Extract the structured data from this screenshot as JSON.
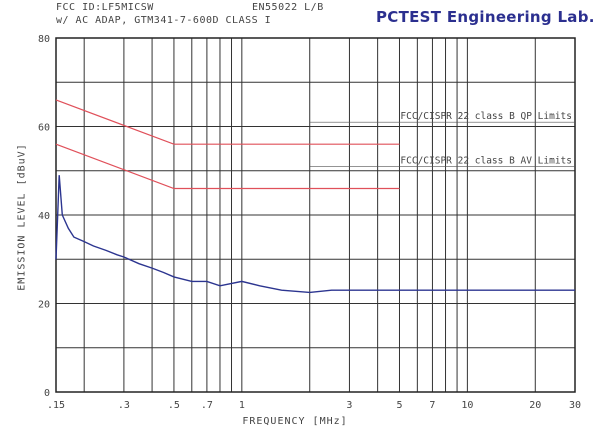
{
  "header": {
    "line1": "FCC ID:LF5MICSW",
    "line2": "w/ AC ADAP, GTM341-7-600D CLASS I",
    "standard": "EN55022 L/B",
    "lab": "PCTEST Engineering Lab."
  },
  "chart_data": {
    "type": "line",
    "xscale": "log",
    "xlabel": "FREQUENCY [MHz]",
    "ylabel": "EMISSION LEVEL [dBuV]",
    "xlim": [
      0.15,
      30
    ],
    "ylim": [
      0,
      80
    ],
    "grid": true,
    "xticks": [
      0.15,
      0.3,
      0.5,
      0.7,
      1,
      3,
      5,
      7,
      10,
      20,
      30
    ],
    "xtick_labels": [
      ".15",
      ".3",
      ".5",
      ".7",
      "1",
      "3",
      "5",
      "7",
      "10",
      "20",
      "30"
    ],
    "yticks": [
      0,
      20,
      40,
      60,
      80
    ],
    "ytick_labels": [
      "0",
      "20",
      "40",
      "60",
      "80"
    ],
    "series": [
      {
        "name": "FCC/CISPR 22 class B QP Limits",
        "color": "#e0505a",
        "x": [
          0.15,
          0.5,
          5
        ],
        "y": [
          66,
          56,
          56
        ]
      },
      {
        "name": "FCC/CISPR 22 class B AV Limits",
        "color": "#e0505a",
        "x": [
          0.15,
          0.5,
          5
        ],
        "y": [
          56,
          46,
          46
        ]
      },
      {
        "name": "",
        "color": "#2c3590",
        "x": [
          0.15,
          0.155,
          0.16,
          0.17,
          0.18,
          0.2,
          0.22,
          0.25,
          0.28,
          0.3,
          0.35,
          0.4,
          0.45,
          0.5,
          0.6,
          0.7,
          0.8,
          1.0,
          1.2,
          1.5,
          2.0,
          2.5,
          3.0,
          4.0,
          5.0,
          7.0,
          10,
          15,
          20,
          30
        ],
        "y": [
          30,
          49,
          40,
          37,
          35,
          34,
          33,
          32,
          31,
          30.5,
          29,
          28,
          27,
          26,
          25,
          25,
          24,
          25,
          24,
          23,
          22.5,
          23,
          23,
          23,
          23,
          23,
          23,
          23,
          23,
          23
        ]
      }
    ]
  }
}
